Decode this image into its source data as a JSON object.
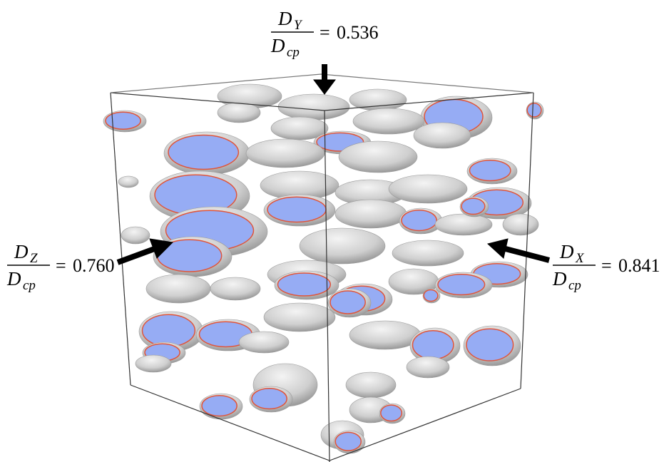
{
  "annotations": [
    {
      "numerator": {
        "symbol": "D",
        "subscript": "Y"
      },
      "denominator": {
        "symbol": "D",
        "subscript": "cp"
      },
      "relation": "=",
      "value": "0.536"
    },
    {
      "numerator": {
        "symbol": "D",
        "subscript": "Z"
      },
      "denominator": {
        "symbol": "D",
        "subscript": "cp"
      },
      "relation": "=",
      "value": "0.760"
    },
    {
      "numerator": {
        "symbol": "D",
        "subscript": "X"
      },
      "denominator": {
        "symbol": "D",
        "subscript": "cp"
      },
      "relation": "=",
      "value": "0.841"
    }
  ]
}
